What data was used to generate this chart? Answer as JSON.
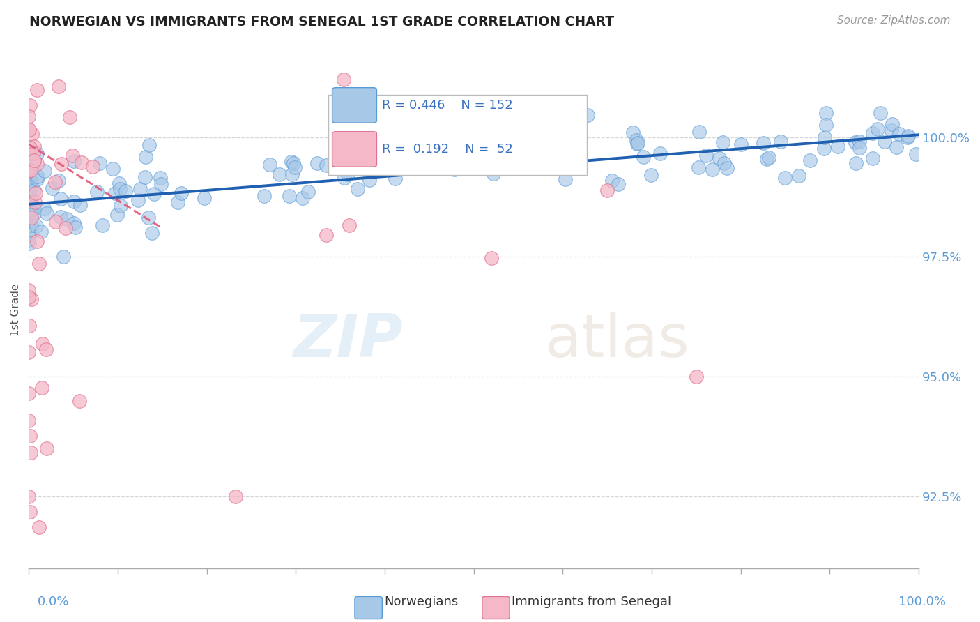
{
  "title": "NORWEGIAN VS IMMIGRANTS FROM SENEGAL 1ST GRADE CORRELATION CHART",
  "source_text": "Source: ZipAtlas.com",
  "ylabel": "1st Grade",
  "watermark_zip": "ZIP",
  "watermark_atlas": "atlas",
  "r_norwegian": 0.446,
  "n_norwegian": 152,
  "r_senegal": 0.192,
  "n_senegal": 52,
  "norwegian_color": "#a8c8e8",
  "norwegian_edge_color": "#5b9bd5",
  "senegal_color": "#f4b8c8",
  "senegal_edge_color": "#e07090",
  "trendline_norwegian_color": "#2060b0",
  "trendline_senegal_color": "#e05070",
  "ytick_values": [
    92.5,
    95.0,
    97.5,
    100.0
  ],
  "ymin": 91.0,
  "ymax": 101.8,
  "xmin": 0.0,
  "xmax": 100.0,
  "grid_color": "#cccccc",
  "background_color": "#ffffff",
  "ytick_color": "#5b9bd5",
  "xtick_label_color": "#5b9bd5"
}
